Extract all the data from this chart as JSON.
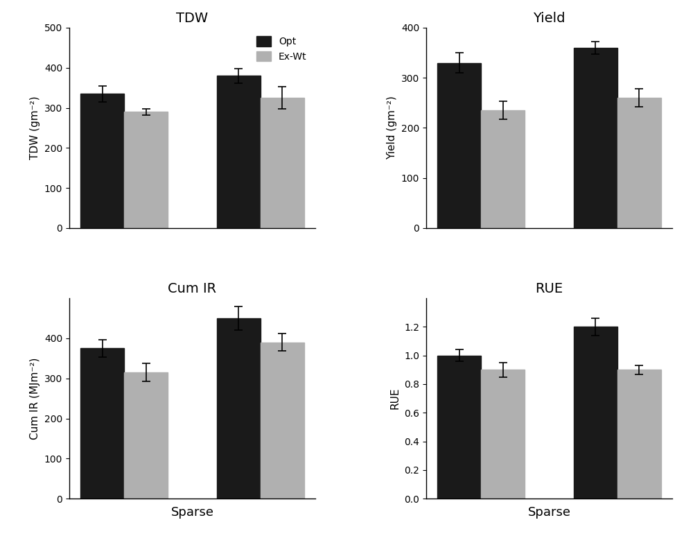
{
  "subplots": [
    {
      "title": "TDW",
      "ylabel": "TDW (gm⁻²)",
      "ylim": [
        0,
        500
      ],
      "yticks": [
        0,
        100,
        200,
        300,
        400,
        500
      ],
      "opt_values": [
        335,
        380
      ],
      "exwt_values": [
        290,
        325
      ],
      "opt_errors": [
        20,
        18
      ],
      "exwt_errors": [
        8,
        28
      ],
      "show_legend": true,
      "xlabel": ""
    },
    {
      "title": "Yield",
      "ylabel": "Yield (gm⁻²)",
      "ylim": [
        0,
        400
      ],
      "yticks": [
        0,
        100,
        200,
        300,
        400
      ],
      "opt_values": [
        330,
        360
      ],
      "exwt_values": [
        235,
        260
      ],
      "opt_errors": [
        20,
        12
      ],
      "exwt_errors": [
        18,
        18
      ],
      "show_legend": false,
      "xlabel": ""
    },
    {
      "title": "Cum IR",
      "ylabel": "Cum IR (MJm⁻²)",
      "ylim": [
        0,
        500
      ],
      "yticks": [
        0,
        100,
        200,
        300,
        400
      ],
      "opt_values": [
        375,
        450
      ],
      "exwt_values": [
        315,
        390
      ],
      "opt_errors": [
        22,
        30
      ],
      "exwt_errors": [
        22,
        22
      ],
      "show_legend": false,
      "xlabel": "Sparse"
    },
    {
      "title": "RUE",
      "ylabel": "RUE",
      "ylim": [
        0.0,
        1.4
      ],
      "yticks": [
        0.0,
        0.2,
        0.4,
        0.6,
        0.8,
        1.0,
        1.2
      ],
      "opt_values": [
        1.0,
        1.2
      ],
      "exwt_values": [
        0.9,
        0.9
      ],
      "opt_errors": [
        0.04,
        0.06
      ],
      "exwt_errors": [
        0.05,
        0.03
      ],
      "show_legend": false,
      "xlabel": "Sparse"
    }
  ],
  "opt_color": "#1a1a1a",
  "exwt_color": "#b0b0b0",
  "bar_width": 0.32,
  "legend_labels": [
    "Opt",
    "Ex-Wt"
  ],
  "axes_bg": "white"
}
